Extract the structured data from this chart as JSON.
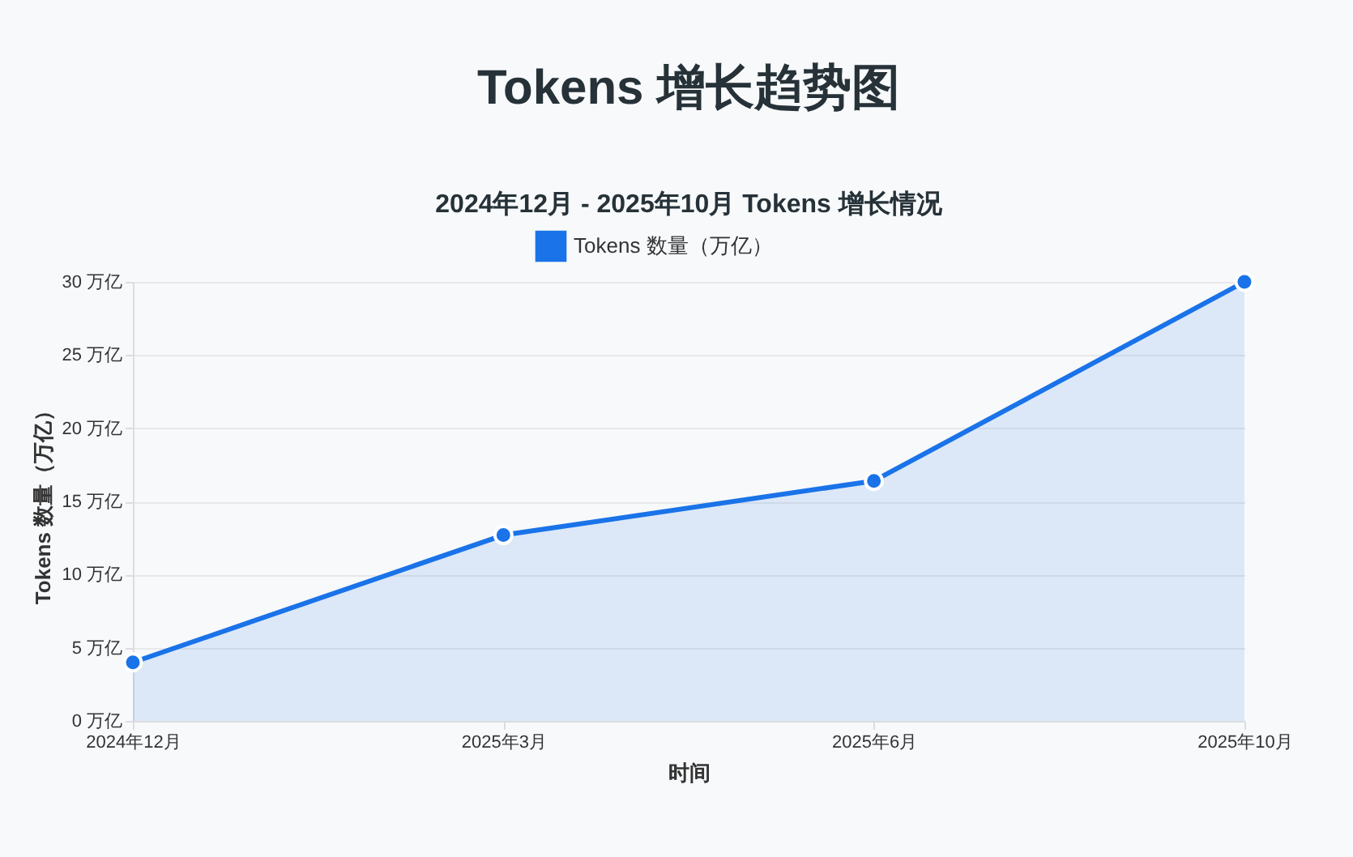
{
  "chart_data": {
    "type": "area",
    "title": "Tokens 增长趋势图",
    "subtitle": "2024年12月 - 2025年10月 Tokens 增长情况",
    "xlabel": "时间",
    "ylabel": "Tokens 数量（万亿）",
    "categories": [
      "2024年12月",
      "2025年3月",
      "2025年6月",
      "2025年10月"
    ],
    "series": [
      {
        "name": "Tokens 数量（万亿）",
        "color": "#1a73e8",
        "values": [
          4,
          12.7,
          16.4,
          30
        ]
      }
    ],
    "ylim": [
      0,
      30
    ],
    "yticks": [
      {
        "value": 0,
        "label": "0 万亿"
      },
      {
        "value": 5,
        "label": "5 万亿"
      },
      {
        "value": 10,
        "label": "10 万亿"
      },
      {
        "value": 15,
        "label": "15 万亿"
      },
      {
        "value": 20,
        "label": "20 万亿"
      },
      {
        "value": 25,
        "label": "25 万亿"
      },
      {
        "value": 30,
        "label": "30 万亿"
      }
    ],
    "grid": "y",
    "legend": "top",
    "marker": "circle",
    "line_style": "solid"
  }
}
